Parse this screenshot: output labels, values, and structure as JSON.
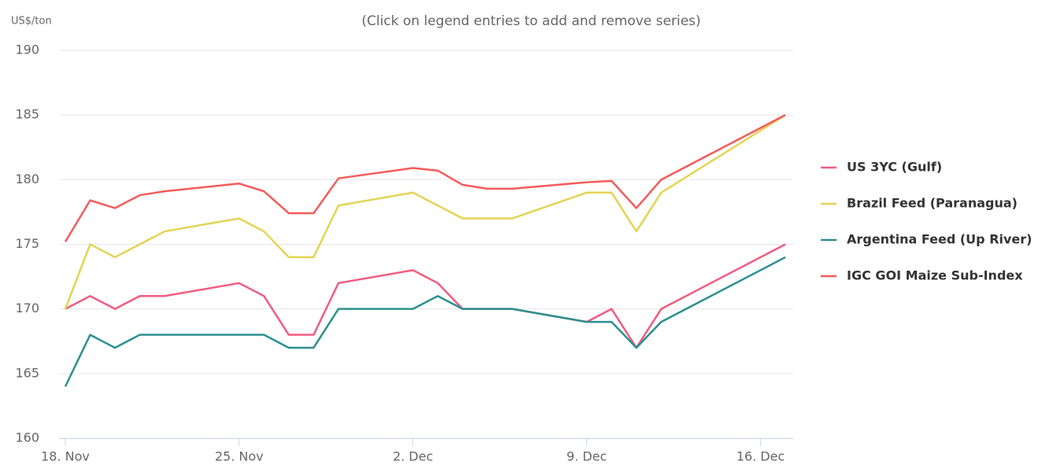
{
  "chart_data": {
    "type": "line",
    "subtitle": "(Click on legend entries to add and remove series)",
    "y_label": "US$/ton",
    "x": [
      "11-18",
      "11-19",
      "11-20",
      "11-21",
      "11-22",
      "11-25",
      "11-26",
      "11-27",
      "11-28",
      "11-29",
      "12-02",
      "12-03",
      "12-04",
      "12-05",
      "12-06",
      "12-09",
      "12-10",
      "12-11",
      "12-12",
      "12-17"
    ],
    "xlim": [
      "11-18",
      "12-17"
    ],
    "xticks": [
      {
        "value": "11-18",
        "label": "18. Nov"
      },
      {
        "value": "11-25",
        "label": "25. Nov"
      },
      {
        "value": "12-02",
        "label": "2. Dec"
      },
      {
        "value": "12-09",
        "label": "9. Dec"
      },
      {
        "value": "12-16",
        "label": "16. Dec"
      }
    ],
    "ylim": [
      160,
      190
    ],
    "yticks": [
      160,
      165,
      170,
      175,
      180,
      185,
      190
    ],
    "grid": true,
    "legend": "right",
    "series": [
      {
        "name": "US 3YC (Gulf)",
        "color": "#f15c80",
        "values": [
          170,
          171,
          170,
          171,
          171,
          172,
          171,
          168,
          168,
          172,
          173,
          172,
          170,
          170,
          170,
          169,
          170,
          167,
          170,
          175
        ]
      },
      {
        "name": "Brazil Feed (Paranagua)",
        "color": "#e4d354",
        "values": [
          170,
          175,
          174,
          175,
          176,
          177,
          176,
          174,
          174,
          178,
          179,
          178,
          177,
          177,
          177,
          179,
          179,
          176,
          179,
          185
        ]
      },
      {
        "name": "Argentina Feed (Up River)",
        "color": "#2b908f",
        "values": [
          164,
          168,
          167,
          168,
          168,
          168,
          168,
          167,
          167,
          170,
          170,
          171,
          170,
          170,
          170,
          169,
          169,
          167,
          169,
          174
        ]
      },
      {
        "name": "IGC GOI Maize Sub-Index",
        "color": "#f45b5b",
        "values": [
          175.2,
          178.4,
          177.8,
          178.8,
          179.1,
          179.7,
          179.1,
          177.4,
          177.4,
          180.1,
          180.9,
          180.7,
          179.6,
          179.3,
          179.3,
          179.8,
          179.9,
          177.8,
          180,
          185
        ]
      }
    ]
  }
}
